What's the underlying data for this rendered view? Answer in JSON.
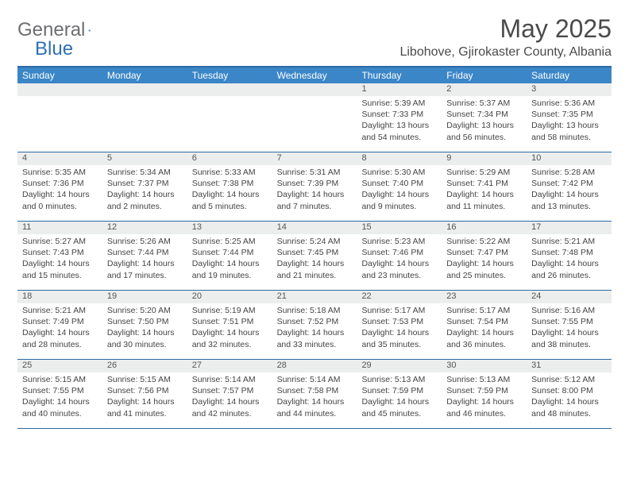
{
  "brand": {
    "general": "General",
    "blue": "Blue"
  },
  "title": "May 2025",
  "location": "Libohove, Gjirokaster County, Albania",
  "colors": {
    "header_bg": "#3b86c7",
    "header_border": "#2b6aa3",
    "daynum_bg": "#eceded",
    "text": "#4a4a4a",
    "logo_gray": "#6d6e71",
    "logo_blue": "#2f6fb4"
  },
  "dayheads": [
    "Sunday",
    "Monday",
    "Tuesday",
    "Wednesday",
    "Thursday",
    "Friday",
    "Saturday"
  ],
  "weeks": [
    [
      {
        "n": "",
        "sr": "",
        "ss": "",
        "dl": ""
      },
      {
        "n": "",
        "sr": "",
        "ss": "",
        "dl": ""
      },
      {
        "n": "",
        "sr": "",
        "ss": "",
        "dl": ""
      },
      {
        "n": "",
        "sr": "",
        "ss": "",
        "dl": ""
      },
      {
        "n": "1",
        "sr": "Sunrise: 5:39 AM",
        "ss": "Sunset: 7:33 PM",
        "dl": "Daylight: 13 hours and 54 minutes."
      },
      {
        "n": "2",
        "sr": "Sunrise: 5:37 AM",
        "ss": "Sunset: 7:34 PM",
        "dl": "Daylight: 13 hours and 56 minutes."
      },
      {
        "n": "3",
        "sr": "Sunrise: 5:36 AM",
        "ss": "Sunset: 7:35 PM",
        "dl": "Daylight: 13 hours and 58 minutes."
      }
    ],
    [
      {
        "n": "4",
        "sr": "Sunrise: 5:35 AM",
        "ss": "Sunset: 7:36 PM",
        "dl": "Daylight: 14 hours and 0 minutes."
      },
      {
        "n": "5",
        "sr": "Sunrise: 5:34 AM",
        "ss": "Sunset: 7:37 PM",
        "dl": "Daylight: 14 hours and 2 minutes."
      },
      {
        "n": "6",
        "sr": "Sunrise: 5:33 AM",
        "ss": "Sunset: 7:38 PM",
        "dl": "Daylight: 14 hours and 5 minutes."
      },
      {
        "n": "7",
        "sr": "Sunrise: 5:31 AM",
        "ss": "Sunset: 7:39 PM",
        "dl": "Daylight: 14 hours and 7 minutes."
      },
      {
        "n": "8",
        "sr": "Sunrise: 5:30 AM",
        "ss": "Sunset: 7:40 PM",
        "dl": "Daylight: 14 hours and 9 minutes."
      },
      {
        "n": "9",
        "sr": "Sunrise: 5:29 AM",
        "ss": "Sunset: 7:41 PM",
        "dl": "Daylight: 14 hours and 11 minutes."
      },
      {
        "n": "10",
        "sr": "Sunrise: 5:28 AM",
        "ss": "Sunset: 7:42 PM",
        "dl": "Daylight: 14 hours and 13 minutes."
      }
    ],
    [
      {
        "n": "11",
        "sr": "Sunrise: 5:27 AM",
        "ss": "Sunset: 7:43 PM",
        "dl": "Daylight: 14 hours and 15 minutes."
      },
      {
        "n": "12",
        "sr": "Sunrise: 5:26 AM",
        "ss": "Sunset: 7:44 PM",
        "dl": "Daylight: 14 hours and 17 minutes."
      },
      {
        "n": "13",
        "sr": "Sunrise: 5:25 AM",
        "ss": "Sunset: 7:44 PM",
        "dl": "Daylight: 14 hours and 19 minutes."
      },
      {
        "n": "14",
        "sr": "Sunrise: 5:24 AM",
        "ss": "Sunset: 7:45 PM",
        "dl": "Daylight: 14 hours and 21 minutes."
      },
      {
        "n": "15",
        "sr": "Sunrise: 5:23 AM",
        "ss": "Sunset: 7:46 PM",
        "dl": "Daylight: 14 hours and 23 minutes."
      },
      {
        "n": "16",
        "sr": "Sunrise: 5:22 AM",
        "ss": "Sunset: 7:47 PM",
        "dl": "Daylight: 14 hours and 25 minutes."
      },
      {
        "n": "17",
        "sr": "Sunrise: 5:21 AM",
        "ss": "Sunset: 7:48 PM",
        "dl": "Daylight: 14 hours and 26 minutes."
      }
    ],
    [
      {
        "n": "18",
        "sr": "Sunrise: 5:21 AM",
        "ss": "Sunset: 7:49 PM",
        "dl": "Daylight: 14 hours and 28 minutes."
      },
      {
        "n": "19",
        "sr": "Sunrise: 5:20 AM",
        "ss": "Sunset: 7:50 PM",
        "dl": "Daylight: 14 hours and 30 minutes."
      },
      {
        "n": "20",
        "sr": "Sunrise: 5:19 AM",
        "ss": "Sunset: 7:51 PM",
        "dl": "Daylight: 14 hours and 32 minutes."
      },
      {
        "n": "21",
        "sr": "Sunrise: 5:18 AM",
        "ss": "Sunset: 7:52 PM",
        "dl": "Daylight: 14 hours and 33 minutes."
      },
      {
        "n": "22",
        "sr": "Sunrise: 5:17 AM",
        "ss": "Sunset: 7:53 PM",
        "dl": "Daylight: 14 hours and 35 minutes."
      },
      {
        "n": "23",
        "sr": "Sunrise: 5:17 AM",
        "ss": "Sunset: 7:54 PM",
        "dl": "Daylight: 14 hours and 36 minutes."
      },
      {
        "n": "24",
        "sr": "Sunrise: 5:16 AM",
        "ss": "Sunset: 7:55 PM",
        "dl": "Daylight: 14 hours and 38 minutes."
      }
    ],
    [
      {
        "n": "25",
        "sr": "Sunrise: 5:15 AM",
        "ss": "Sunset: 7:55 PM",
        "dl": "Daylight: 14 hours and 40 minutes."
      },
      {
        "n": "26",
        "sr": "Sunrise: 5:15 AM",
        "ss": "Sunset: 7:56 PM",
        "dl": "Daylight: 14 hours and 41 minutes."
      },
      {
        "n": "27",
        "sr": "Sunrise: 5:14 AM",
        "ss": "Sunset: 7:57 PM",
        "dl": "Daylight: 14 hours and 42 minutes."
      },
      {
        "n": "28",
        "sr": "Sunrise: 5:14 AM",
        "ss": "Sunset: 7:58 PM",
        "dl": "Daylight: 14 hours and 44 minutes."
      },
      {
        "n": "29",
        "sr": "Sunrise: 5:13 AM",
        "ss": "Sunset: 7:59 PM",
        "dl": "Daylight: 14 hours and 45 minutes."
      },
      {
        "n": "30",
        "sr": "Sunrise: 5:13 AM",
        "ss": "Sunset: 7:59 PM",
        "dl": "Daylight: 14 hours and 46 minutes."
      },
      {
        "n": "31",
        "sr": "Sunrise: 5:12 AM",
        "ss": "Sunset: 8:00 PM",
        "dl": "Daylight: 14 hours and 48 minutes."
      }
    ]
  ]
}
